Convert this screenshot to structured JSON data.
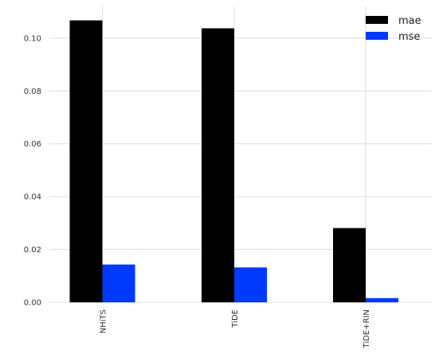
{
  "chart_data": {
    "type": "bar",
    "categories": [
      "NHiTS",
      "TiDE",
      "TiDE+RIN"
    ],
    "series": [
      {
        "name": "mae",
        "values": [
          0.1067,
          0.1037,
          0.0281
        ],
        "color": "#000000"
      },
      {
        "name": "mse",
        "values": [
          0.0143,
          0.0132,
          0.0016
        ],
        "color": "#0039ff"
      }
    ],
    "ylim": [
      0,
      0.112
    ],
    "yticks": [
      0.0,
      0.02,
      0.04,
      0.06,
      0.08,
      0.1
    ],
    "ytick_labels": [
      "0.00",
      "0.02",
      "0.04",
      "0.06",
      "0.08",
      "0.10"
    ],
    "xtick_rotation": "vertical",
    "grid": true,
    "legend_position": "top-right",
    "xlabel": "",
    "ylabel": "",
    "title": ""
  }
}
